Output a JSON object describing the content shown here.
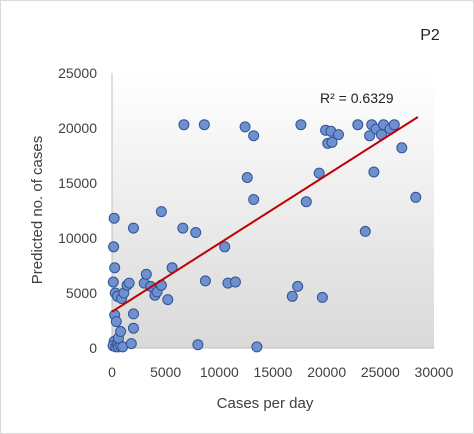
{
  "panel_label": "P2",
  "chart_data": {
    "type": "scatter",
    "xlabel": "Cases per day",
    "ylabel": "Predicted no. of cases",
    "xlim": [
      0,
      30000
    ],
    "ylim": [
      0,
      25000
    ],
    "xticks": [
      "0",
      "5000",
      "10000",
      "15000",
      "20000",
      "25000",
      "30000"
    ],
    "yticks": [
      "0",
      "5000",
      "10000",
      "15000",
      "20000",
      "25000"
    ],
    "grid": false,
    "trendline": {
      "x": [
        0,
        28500
      ],
      "y": [
        3300,
        21000
      ],
      "label": "R² = 0.6329"
    },
    "colors": {
      "marker_fill": "#6f8fcf",
      "marker_edge": "#2f5496",
      "trendline": "#c00000",
      "plot_gradient_top": "#ffffff",
      "plot_gradient_bottom": "#d9d9d9"
    },
    "points": [
      [
        200,
        11800
      ],
      [
        150,
        9200
      ],
      [
        250,
        7300
      ],
      [
        120,
        6000
      ],
      [
        300,
        5000
      ],
      [
        250,
        3000
      ],
      [
        400,
        2400
      ],
      [
        200,
        600
      ],
      [
        100,
        200
      ],
      [
        350,
        100
      ],
      [
        500,
        300
      ],
      [
        600,
        100
      ],
      [
        800,
        200
      ],
      [
        1000,
        100
      ],
      [
        600,
        900
      ],
      [
        800,
        1500
      ],
      [
        500,
        4700
      ],
      [
        900,
        4500
      ],
      [
        1100,
        5000
      ],
      [
        1400,
        5700
      ],
      [
        1600,
        5900
      ],
      [
        1800,
        400
      ],
      [
        2000,
        1800
      ],
      [
        2000,
        3100
      ],
      [
        2000,
        10900
      ],
      [
        3000,
        5900
      ],
      [
        3200,
        6700
      ],
      [
        3600,
        5600
      ],
      [
        4000,
        4800
      ],
      [
        4200,
        5100
      ],
      [
        4600,
        5700
      ],
      [
        4600,
        12400
      ],
      [
        5200,
        4400
      ],
      [
        5600,
        7300
      ],
      [
        6600,
        10900
      ],
      [
        6700,
        20300
      ],
      [
        7800,
        10500
      ],
      [
        8000,
        300
      ],
      [
        8600,
        20300
      ],
      [
        8700,
        6100
      ],
      [
        10500,
        9200
      ],
      [
        10800,
        5900
      ],
      [
        11500,
        6000
      ],
      [
        12400,
        20100
      ],
      [
        12600,
        15500
      ],
      [
        13200,
        13500
      ],
      [
        13200,
        19300
      ],
      [
        13500,
        100
      ],
      [
        16800,
        4700
      ],
      [
        17300,
        5600
      ],
      [
        17600,
        20300
      ],
      [
        18100,
        13300
      ],
      [
        19300,
        15900
      ],
      [
        19600,
        4600
      ],
      [
        19900,
        19800
      ],
      [
        20100,
        18600
      ],
      [
        20500,
        18700
      ],
      [
        20400,
        19700
      ],
      [
        21100,
        19400
      ],
      [
        22900,
        20300
      ],
      [
        23600,
        10600
      ],
      [
        24000,
        19300
      ],
      [
        24200,
        20300
      ],
      [
        24400,
        16000
      ],
      [
        24600,
        19900
      ],
      [
        25100,
        19400
      ],
      [
        25300,
        20300
      ],
      [
        25900,
        19900
      ],
      [
        26300,
        20300
      ],
      [
        27000,
        18200
      ],
      [
        28300,
        13700
      ]
    ]
  }
}
